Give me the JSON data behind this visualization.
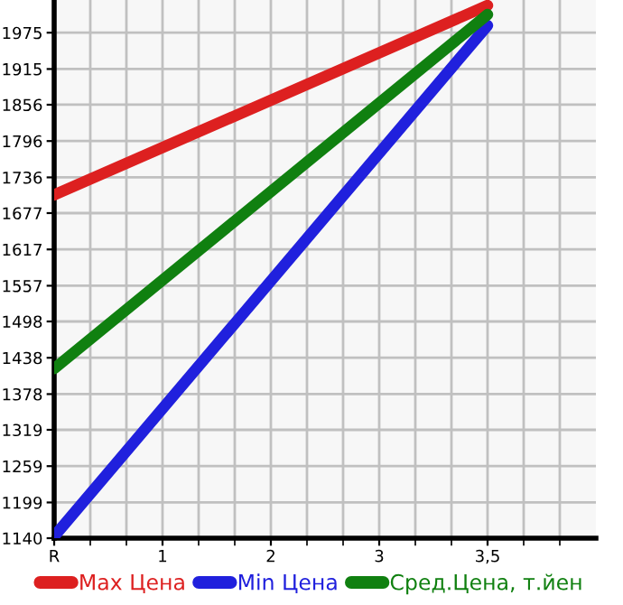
{
  "chart_data": {
    "type": "line",
    "categories": [
      "R",
      "1",
      "2",
      "3",
      "3,5"
    ],
    "series": [
      {
        "name": "Max Цена",
        "color": "#dd2020",
        "values": [
          1707,
          null,
          null,
          null,
          2020
        ]
      },
      {
        "name": "Min Цена",
        "color": "#2020dd",
        "values": [
          1143,
          null,
          null,
          null,
          1987
        ]
      },
      {
        "name": "Сред.Цена, т.йен",
        "color": "#108010",
        "values": [
          1420,
          null,
          null,
          null,
          2005
        ]
      }
    ],
    "ylim": [
      1140,
      2029
    ],
    "yticks": [
      1140,
      1199,
      1259,
      1319,
      1378,
      1438,
      1498,
      1557,
      1617,
      1677,
      1736,
      1796,
      1856,
      1915,
      1975
    ],
    "grid": true,
    "legend": "bottom",
    "marker": "none",
    "line_style": "solid"
  }
}
